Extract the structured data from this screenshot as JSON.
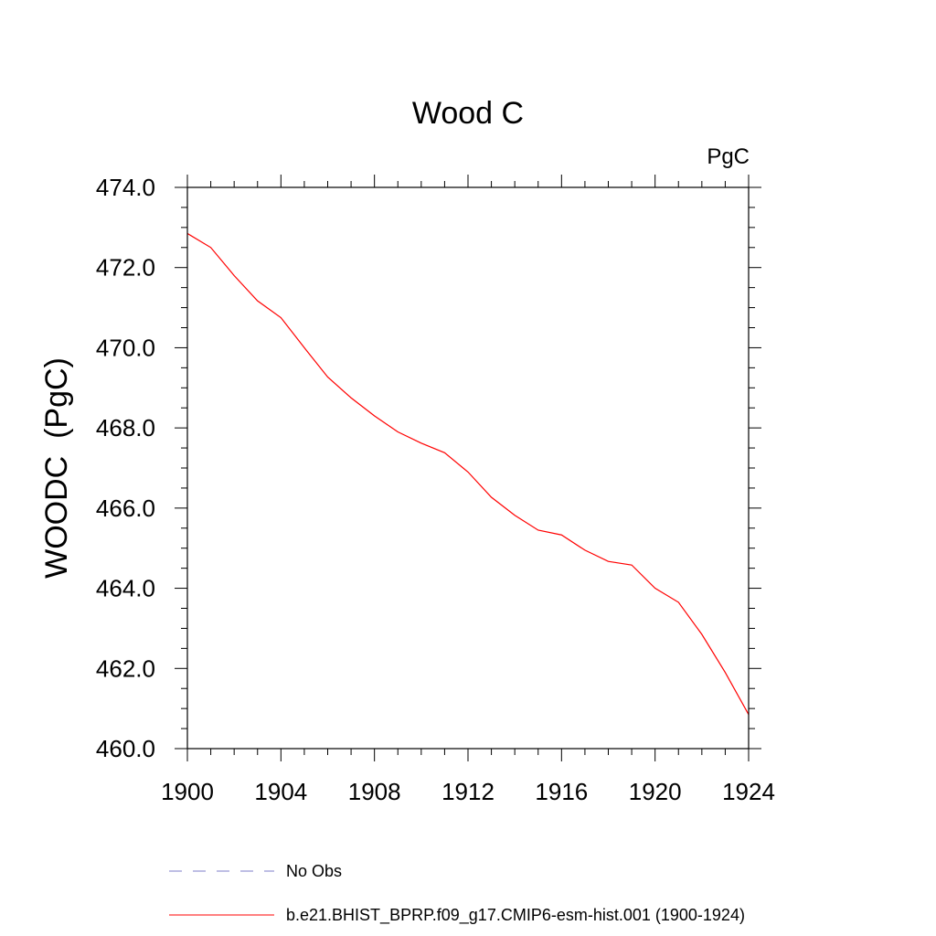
{
  "chart_data": {
    "type": "line",
    "title": "Wood C",
    "units_label": "PgC",
    "ylabel": "WOODC  (PgC)",
    "xlabel": "",
    "xlim": [
      1900,
      1924
    ],
    "ylim": [
      460,
      474
    ],
    "x_ticks": [
      1900,
      1904,
      1908,
      1912,
      1916,
      1920,
      1924
    ],
    "x_tick_labels": [
      "1900",
      "1904",
      "1908",
      "1912",
      "1916",
      "1920",
      "1924"
    ],
    "y_ticks": [
      460,
      462,
      464,
      466,
      468,
      470,
      472,
      474
    ],
    "y_tick_labels": [
      "460.0",
      "462.0",
      "464.0",
      "466.0",
      "468.0",
      "470.0",
      "472.0",
      "474.0"
    ],
    "grid": false,
    "legend_position": "bottom",
    "series": [
      {
        "name": "b.e21.BHIST_BPRP.f09_g17.CMIP6-esm-hist.001 (1900-1924)",
        "color": "#ff0000",
        "style": "solid",
        "x": [
          1900,
          1901,
          1902,
          1903,
          1904,
          1905,
          1906,
          1907,
          1908,
          1909,
          1910,
          1911,
          1912,
          1913,
          1914,
          1915,
          1916,
          1917,
          1918,
          1919,
          1920,
          1921,
          1922,
          1923,
          1924
        ],
        "values": [
          472.85,
          472.5,
          471.8,
          471.17,
          470.75,
          470.0,
          469.27,
          468.75,
          468.3,
          467.9,
          467.62,
          467.38,
          466.9,
          466.27,
          465.82,
          465.45,
          465.33,
          464.95,
          464.67,
          464.58,
          464.0,
          463.65,
          462.85,
          461.9,
          460.85
        ]
      }
    ],
    "legend": [
      {
        "label": "No Obs",
        "color": "#7d7dc8",
        "style": "dashed"
      },
      {
        "label": "b.e21.BHIST_BPRP.f09_g17.CMIP6-esm-hist.001 (1900-1924)",
        "color": "#ff0000",
        "style": "solid"
      }
    ]
  }
}
